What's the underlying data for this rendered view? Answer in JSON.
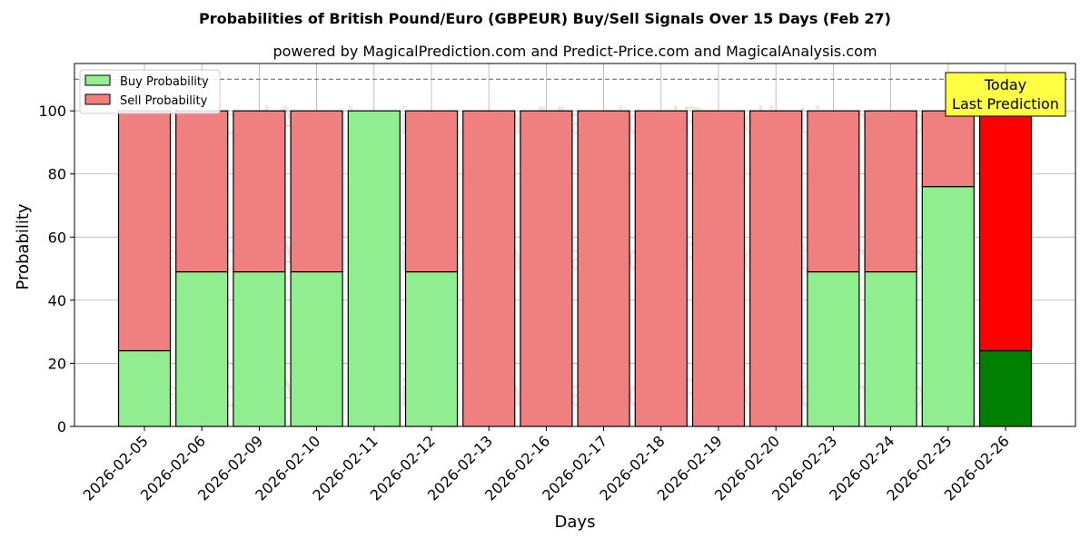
{
  "chart_data": {
    "type": "bar",
    "stacked": true,
    "title": "Probabilities of British Pound/Euro (GBPEUR) Buy/Sell Signals Over 15 Days (Feb 27)",
    "subtitle": "powered by MagicalPrediction.com and Predict-Price.com and MagicalAnalysis.com",
    "xlabel": "Days",
    "ylabel": "Probability",
    "ylim": [
      0,
      115
    ],
    "yticks": [
      0,
      20,
      40,
      60,
      80,
      100
    ],
    "reference_line": 110,
    "grid": true,
    "legend_position": "top-left",
    "categories": [
      "2026-02-05",
      "2026-02-06",
      "2026-02-09",
      "2026-02-10",
      "2026-02-11",
      "2026-02-12",
      "2026-02-13",
      "2026-02-16",
      "2026-02-17",
      "2026-02-18",
      "2026-02-19",
      "2026-02-20",
      "2026-02-23",
      "2026-02-24",
      "2026-02-25",
      "2026-02-26"
    ],
    "series": [
      {
        "name": "Buy Probability",
        "color": "#90ee90",
        "highlight_color": "#008000",
        "values": [
          24,
          49,
          49,
          49,
          100,
          49,
          0,
          0,
          0,
          0,
          0,
          0,
          49,
          49,
          76,
          24
        ]
      },
      {
        "name": "Sell Probability",
        "color": "#f08080",
        "highlight_color": "#ff0000",
        "values": [
          76,
          51,
          51,
          51,
          0,
          51,
          100,
          100,
          100,
          100,
          100,
          100,
          51,
          51,
          24,
          76
        ]
      }
    ],
    "highlight_index": 15,
    "annotation": {
      "line1": "Today",
      "line2": "Last Prediction",
      "color": "#ffff44"
    },
    "watermark": "MagicalAnalysis.com    MagicalPrediction.com"
  }
}
